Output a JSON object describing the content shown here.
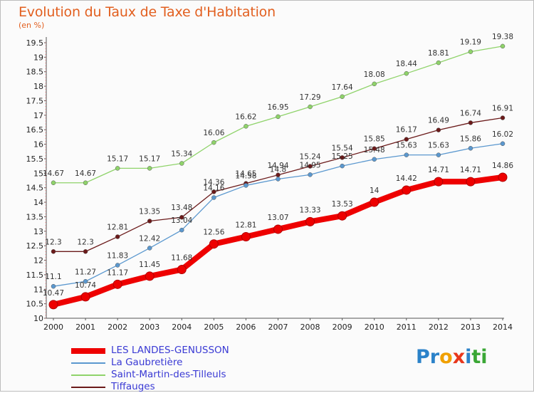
{
  "title": "Evolution du Taux de Taxe d'Habitation",
  "unit": "(en %)",
  "logo": {
    "letters": [
      "P",
      "r",
      "o",
      "x",
      "i",
      "t",
      "i"
    ],
    "colors": [
      "#2b82c9",
      "#2b82c9",
      "#f0a000",
      "#e8371c",
      "#2b82c9",
      "#3aa735",
      "#3aa735"
    ]
  },
  "chart_data": {
    "type": "line",
    "title": "Evolution du Taux de Taxe d'Habitation",
    "ylabel": "(en %)",
    "xlabel": "",
    "x": [
      "2000",
      "2001",
      "2002",
      "2003",
      "2004",
      "2005",
      "2006",
      "2007",
      "2008",
      "2009",
      "2010",
      "2011",
      "2012",
      "2013",
      "2014"
    ],
    "ylim": [
      10,
      19.5
    ],
    "yticks": [
      "10",
      "10.5",
      "11",
      "11.5",
      "12",
      "12.5",
      "13",
      "13.5",
      "14",
      "14.5",
      "15",
      "15.5",
      "16",
      "16.5",
      "17",
      "17.5",
      "18",
      "18.5",
      "19",
      "19.5"
    ],
    "grid": false,
    "legend": "bottom-left",
    "series": [
      {
        "name": "LES LANDES-GENUSSON",
        "color": "#ee0000",
        "values": [
          10.47,
          10.74,
          11.17,
          11.45,
          11.68,
          12.56,
          12.81,
          13.07,
          13.33,
          13.53,
          14,
          14.42,
          14.71,
          14.71,
          14.86
        ],
        "labels": [
          "10.47",
          "10.74",
          "11.17",
          "11.45",
          "11.68",
          "12.56",
          "12.81",
          "13.07",
          "13.33",
          "13.53",
          "14",
          "14.42",
          "14.71",
          "14.71",
          "14.86"
        ]
      },
      {
        "name": "La Gaubretière",
        "color": "#5b98cf",
        "values": [
          11.1,
          11.27,
          11.83,
          12.42,
          13.04,
          14.16,
          14.58,
          14.8,
          14.95,
          15.25,
          15.48,
          15.63,
          15.63,
          15.86,
          16.02
        ],
        "labels": [
          "11.1",
          "11.27",
          "11.83",
          "12.42",
          "13.04",
          "14.16",
          "14.58",
          "14.8",
          "14.95",
          "15.25",
          "15.48",
          "15.63",
          "15.63",
          "15.86",
          "16.02"
        ]
      },
      {
        "name": "Saint-Martin-des-Tilleuls",
        "color": "#8fd36a",
        "values": [
          14.67,
          14.67,
          15.17,
          15.17,
          15.34,
          16.06,
          16.62,
          16.95,
          17.29,
          17.64,
          18.08,
          18.44,
          18.81,
          19.19,
          19.38
        ],
        "labels": [
          "14.67",
          "14.67",
          "15.17",
          "15.17",
          "15.34",
          "16.06",
          "16.62",
          "16.95",
          "17.29",
          "17.64",
          "18.08",
          "18.44",
          "18.81",
          "19.19",
          "19.38"
        ]
      },
      {
        "name": "Tiffauges",
        "color": "#6b1a1a",
        "values": [
          12.3,
          12.3,
          12.81,
          13.35,
          13.48,
          14.36,
          14.65,
          14.94,
          15.24,
          15.54,
          15.85,
          16.17,
          16.49,
          16.74,
          16.91
        ],
        "labels": [
          "12.3",
          "12.3",
          "12.81",
          "13.35",
          "13.48",
          "14.36",
          "14.65",
          "14.94",
          "15.24",
          "15.54",
          "15.85",
          "16.17",
          "16.49",
          "16.74",
          "16.91"
        ]
      }
    ]
  }
}
